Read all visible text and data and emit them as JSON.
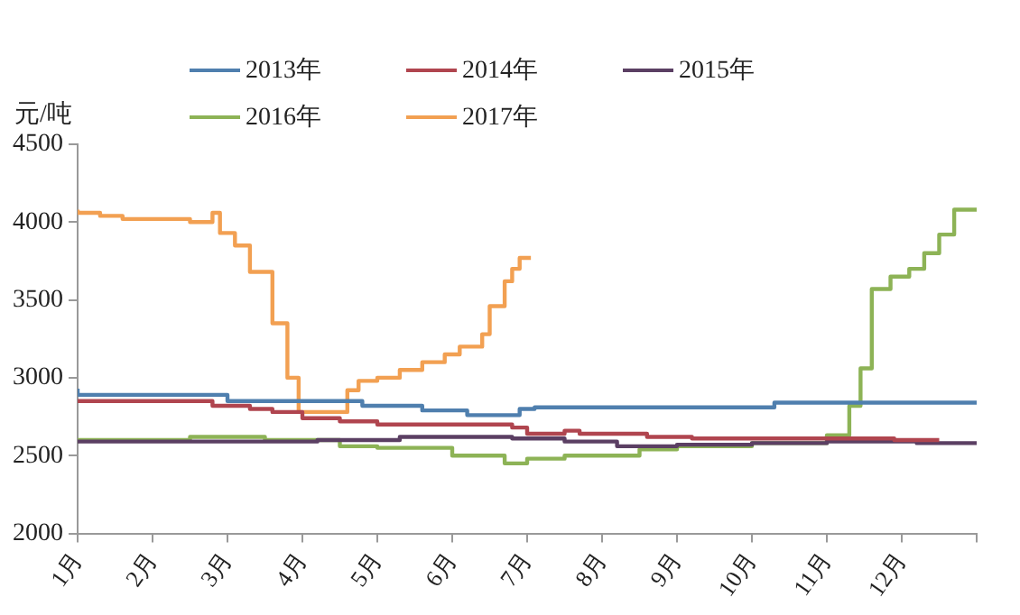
{
  "chart_data": {
    "type": "step",
    "ylabel": "元/吨",
    "xlim": [
      1,
      13
    ],
    "xticks": [
      {
        "value": 1,
        "label": "1月"
      },
      {
        "value": 2,
        "label": "2月"
      },
      {
        "value": 3,
        "label": "3月"
      },
      {
        "value": 4,
        "label": "4月"
      },
      {
        "value": 5,
        "label": "5月"
      },
      {
        "value": 6,
        "label": "6月"
      },
      {
        "value": 7,
        "label": "7月"
      },
      {
        "value": 8,
        "label": "8月"
      },
      {
        "value": 9,
        "label": "9月"
      },
      {
        "value": 10,
        "label": "10月"
      },
      {
        "value": 11,
        "label": "11月"
      },
      {
        "value": 12,
        "label": "12月"
      },
      {
        "value": 13,
        "label": null
      }
    ],
    "ylim": [
      2000,
      4500
    ],
    "yticks": [
      2000,
      2500,
      3000,
      3500,
      4000,
      4500
    ],
    "grid": false,
    "legend": "top",
    "marker": "none",
    "line_style": "solid",
    "series": [
      {
        "name": "2013年",
        "color": "#4f7fae",
        "x": [
          1,
          3,
          4.8,
          5.6,
          6.2,
          6.9,
          7.1,
          10.3,
          11.6,
          13
        ],
        "values": [
          2930,
          2890,
          2850,
          2820,
          2790,
          2760,
          2800,
          2810,
          2840,
          2840
        ]
      },
      {
        "name": "2014年",
        "color": "#b0454f",
        "x": [
          1,
          2.8,
          3.3,
          3.6,
          4,
          4.5,
          5,
          6.8,
          7,
          7.5,
          7.7,
          8.6,
          9.2,
          11.9,
          12.5
        ],
        "values": [
          2840,
          2850,
          2820,
          2800,
          2780,
          2740,
          2720,
          2700,
          2680,
          2640,
          2660,
          2640,
          2620,
          2610,
          2600
        ]
      },
      {
        "name": "2015年",
        "color": "#5b3f63",
        "x": [
          1,
          4.2,
          5.3,
          6.8,
          7.5,
          8.2,
          9,
          10,
          11,
          12.2,
          13
        ],
        "values": [
          2580,
          2590,
          2600,
          2620,
          2610,
          2590,
          2560,
          2570,
          2580,
          2590,
          2580
        ]
      },
      {
        "name": "2016年",
        "color": "#8db356",
        "x": [
          1,
          2.5,
          3.5,
          4.5,
          5,
          6,
          6.7,
          7,
          7.5,
          8.5,
          9,
          10,
          11,
          11.3,
          11.45,
          11.6,
          11.85,
          12.1,
          12.3,
          12.5,
          12.7,
          12.9,
          13
        ],
        "values": [
          2580,
          2600,
          2620,
          2600,
          2560,
          2550,
          2500,
          2450,
          2480,
          2500,
          2540,
          2560,
          2580,
          2630,
          2820,
          3060,
          3570,
          3650,
          3700,
          3800,
          3920,
          4080,
          4080
        ]
      },
      {
        "name": "2017年",
        "color": "#f2a052",
        "x": [
          1,
          1.3,
          1.6,
          2.5,
          2.8,
          2.9,
          3.1,
          3.3,
          3.6,
          3.8,
          3.95,
          4.1,
          4.6,
          4.75,
          5,
          5.3,
          5.6,
          5.9,
          6.1,
          6.4,
          6.5,
          6.7,
          6.8,
          6.9,
          7,
          7.05
        ],
        "values": [
          4080,
          4060,
          4040,
          4020,
          4000,
          4060,
          3930,
          3850,
          3680,
          3350,
          3000,
          2780,
          2780,
          2920,
          2980,
          3000,
          3050,
          3100,
          3150,
          3200,
          3280,
          3460,
          3620,
          3700,
          3770,
          3770
        ]
      }
    ]
  }
}
